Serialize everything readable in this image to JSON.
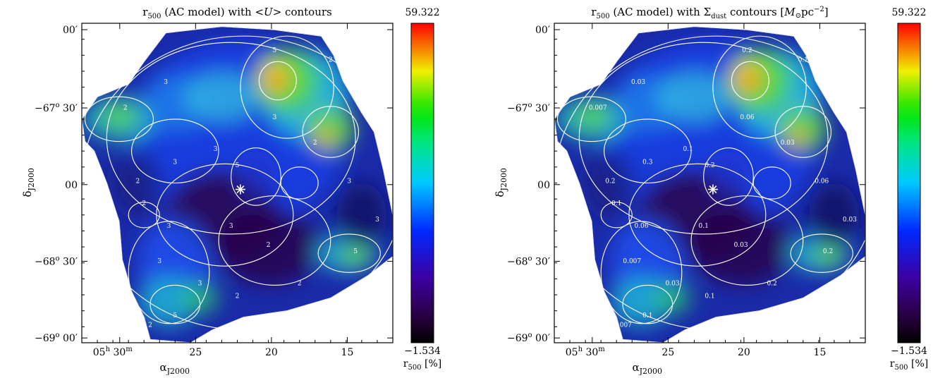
{
  "chart_data": [
    {
      "type": "heatmap",
      "title_parts": {
        "pre": "r",
        "sub": "500",
        "post": " (AC model) with <",
        "ital": "U",
        "post2": "> contours"
      },
      "x_ticks": [
        {
          "label_main": "05",
          "label_sup1": "h",
          "label_mid": " 30",
          "label_sup2": "m",
          "value": 30
        },
        {
          "label_main": "25",
          "value": 25
        },
        {
          "label_main": "20",
          "value": 20
        },
        {
          "label_main": "15",
          "value": 15
        }
      ],
      "y_ticks": [
        {
          "label_main": "00",
          "label_sup": "′",
          "value": 0
        },
        {
          "label_main": "−67",
          "label_deg": "o",
          "label_min": " 30",
          "label_sup": "′",
          "value": -67.5
        },
        {
          "label_main": "00",
          "label_sup": "",
          "value": -68.0
        },
        {
          "label_main": "−68",
          "label_deg": "o",
          "label_min": " 30",
          "label_sup": "′",
          "value": -68.5
        },
        {
          "label_main": "−69",
          "label_deg": "o",
          "label_min": " 00",
          "label_sup": "′",
          "value": -69.0
        }
      ],
      "xlabel": {
        "main": "α",
        "sub": "J2000"
      },
      "ylabel": {
        "main": "δ",
        "sub": "J2000"
      },
      "colorbar": {
        "max": "59.322",
        "min": "−1.534",
        "label_main": "r",
        "label_sub": "500",
        "label_unit": " [%]"
      },
      "contour_labels": [
        "2",
        "3",
        "5",
        "2",
        "3",
        "2",
        "3",
        "5",
        "3",
        "2",
        "2",
        "3",
        "3",
        "2",
        "5",
        "2",
        "3",
        "3",
        "2",
        "2",
        "3",
        "3",
        "5",
        "2"
      ]
    },
    {
      "type": "heatmap",
      "title_parts": {
        "pre": "r",
        "sub": "500",
        "post": " (AC model) with Σ",
        "sub2": "dust",
        "post2": " contours [",
        "ital": "M",
        "odot": "⊙",
        "unit": "pc",
        "sup": "−2",
        "end": "]"
      },
      "x_ticks": [
        {
          "label_main": "05",
          "label_sup1": "h",
          "label_mid": " 30",
          "label_sup2": "m",
          "value": 30
        },
        {
          "label_main": "25",
          "value": 25
        },
        {
          "label_main": "20",
          "value": 20
        },
        {
          "label_main": "15",
          "value": 15
        }
      ],
      "y_ticks": [
        {
          "label_main": "00",
          "label_sup": "′",
          "value": 0
        },
        {
          "label_main": "−67",
          "label_deg": "o",
          "label_min": " 30",
          "label_sup": "′",
          "value": -67.5
        },
        {
          "label_main": "00",
          "label_sup": "",
          "value": -68.0
        },
        {
          "label_main": "−68",
          "label_deg": "o",
          "label_min": " 30",
          "label_sup": "′",
          "value": -68.5
        },
        {
          "label_main": "−69",
          "label_deg": "o",
          "label_min": " 00",
          "label_sup": "′",
          "value": -69.0
        }
      ],
      "xlabel": {
        "main": "α",
        "sub": "J2000"
      },
      "ylabel": {
        "main": "δ",
        "sub": "J2000"
      },
      "colorbar": {
        "max": "59.322",
        "min": "−1.534",
        "label_main": "r",
        "label_sub": "500",
        "label_unit": " [%]"
      },
      "contour_labels": [
        "0.007",
        "0.03",
        "0.2",
        "0.1",
        "0.06",
        "0.03",
        "0.1",
        "0.2",
        "0.3",
        "0.2",
        "0.1",
        "0.06",
        "0.1",
        "0.03",
        "0.2",
        "0.06",
        "0.007",
        "0.03",
        "0.1",
        "0.2",
        "0.06",
        "0.03",
        "0.1",
        "0.007"
      ]
    }
  ]
}
